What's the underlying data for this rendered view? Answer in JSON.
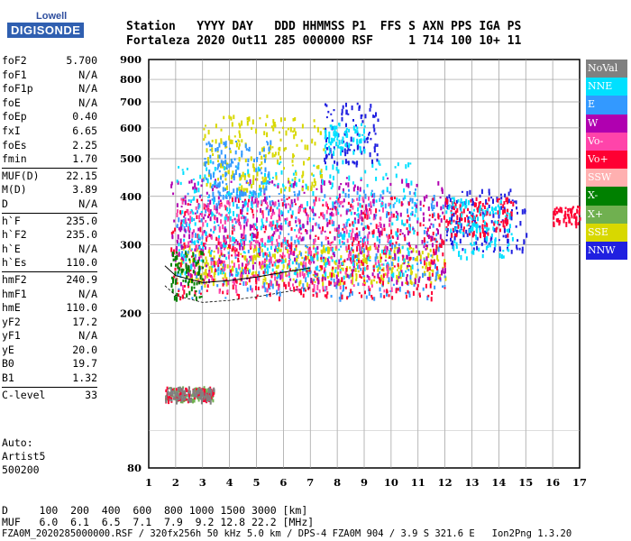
{
  "logo": {
    "top": "Lowell",
    "main": "DIGISONDE"
  },
  "header": {
    "line1": "Station   YYYY DAY   DDD HHMMSS P1  FFS S AXN PPS IGA PS",
    "line2": "Fortaleza 2020 Out11 285 000000 RSF     1 714 100 10+ 11"
  },
  "params": [
    {
      "k": "foF2",
      "v": "5.700"
    },
    {
      "k": "foF1",
      "v": "N/A"
    },
    {
      "k": "foF1p",
      "v": "N/A"
    },
    {
      "k": "foE",
      "v": "N/A"
    },
    {
      "k": "foEp",
      "v": "0.40"
    },
    {
      "k": "fxI",
      "v": "6.65"
    },
    {
      "k": "foEs",
      "v": "2.25"
    },
    {
      "k": "fmin",
      "v": "1.70"
    },
    {
      "k": "MUF(D)",
      "v": "22.15",
      "sep": true
    },
    {
      "k": "M(D)",
      "v": "3.89"
    },
    {
      "k": "D",
      "v": "N/A"
    },
    {
      "k": "h`F",
      "v": "235.0",
      "sep": true
    },
    {
      "k": "h`F2",
      "v": "235.0"
    },
    {
      "k": "h`E",
      "v": "N/A"
    },
    {
      "k": "h`Es",
      "v": "110.0"
    },
    {
      "k": "hmF2",
      "v": "240.9",
      "sep": true
    },
    {
      "k": "hmF1",
      "v": "N/A"
    },
    {
      "k": "hmE",
      "v": "110.0"
    },
    {
      "k": "yF2",
      "v": "17.2"
    },
    {
      "k": "yF1",
      "v": "N/A"
    },
    {
      "k": "yE",
      "v": "20.0"
    },
    {
      "k": "B0",
      "v": "19.7"
    },
    {
      "k": "B1",
      "v": "1.32"
    },
    {
      "k": "C-level",
      "v": "33",
      "sep": true
    }
  ],
  "auto": {
    "label": "Auto:",
    "artist": "Artist5",
    "version": "500200"
  },
  "footer": {
    "d_line": "D     100  200  400  600  800 1000 1500 3000 [km]",
    "muf_line": "MUF   6.0  6.1  6.5  7.1  7.9  9.2 12.8 22.2 [MHz]",
    "file_line": "FZA0M_2020285000000.RSF / 320fx256h 50 kHz 5.0 km / DPS-4 FZA0M 904 / 3.9 S 321.6 E   Ion2Png 1.3.20"
  },
  "legend": [
    {
      "label": "NoVal",
      "color": "#808080"
    },
    {
      "label": "NNE",
      "color": "#00e0ff"
    },
    {
      "label": "E",
      "color": "#3399ff"
    },
    {
      "label": "W",
      "color": "#b000b0"
    },
    {
      "label": "Vo-",
      "color": "#ff44aa"
    },
    {
      "label": "Vo+",
      "color": "#ff0033"
    },
    {
      "label": "SSW",
      "color": "#ffb0b0"
    },
    {
      "label": "X-",
      "color": "#008000"
    },
    {
      "label": "X+",
      "color": "#70b050"
    },
    {
      "label": "SSE",
      "color": "#d8d800"
    },
    {
      "label": "NNW",
      "color": "#2020e0"
    }
  ],
  "chart_data": {
    "type": "scatter",
    "title": "",
    "xlabel": "",
    "ylabel": "",
    "xlim": [
      1,
      17
    ],
    "ylim": [
      80,
      900
    ],
    "x_ticks": [
      1,
      2,
      3,
      4,
      5,
      6,
      7,
      8,
      9,
      10,
      11,
      12,
      13,
      14,
      15,
      16,
      17
    ],
    "y_ticks": [
      80,
      200,
      300,
      400,
      500,
      600,
      700,
      800,
      900
    ],
    "y_scale": "log",
    "grid": true,
    "legend_position": "right",
    "clusters": [
      {
        "series": "X+",
        "x": [
          1.6,
          3.4
        ],
        "y": [
          120,
          130
        ]
      },
      {
        "series": "Vo+",
        "x": [
          1.6,
          3.4
        ],
        "y": [
          120,
          130
        ]
      },
      {
        "series": "NoVal",
        "x": [
          1.6,
          3.4
        ],
        "y": [
          120,
          130
        ]
      },
      {
        "series": "SSE",
        "x": [
          2.0,
          12.0
        ],
        "y": [
          240,
          300
        ]
      },
      {
        "series": "E",
        "x": [
          2.0,
          12.0
        ],
        "y": [
          220,
          420
        ]
      },
      {
        "series": "Vo+",
        "x": [
          1.8,
          12.0
        ],
        "y": [
          220,
          400
        ]
      },
      {
        "series": "W",
        "x": [
          1.8,
          12.0
        ],
        "y": [
          240,
          450
        ]
      },
      {
        "series": "NNE",
        "x": [
          2.0,
          11.0
        ],
        "y": [
          250,
          500
        ]
      },
      {
        "series": "Vo-",
        "x": [
          2.0,
          10.0
        ],
        "y": [
          230,
          400
        ]
      },
      {
        "series": "X-",
        "x": [
          1.8,
          3.0
        ],
        "y": [
          220,
          290
        ]
      },
      {
        "series": "NNW",
        "x": [
          7.5,
          9.5
        ],
        "y": [
          490,
          700
        ]
      },
      {
        "series": "NNE",
        "x": [
          7.5,
          9.0
        ],
        "y": [
          520,
          620
        ]
      },
      {
        "series": "NNW",
        "x": [
          12.0,
          15.0
        ],
        "y": [
          290,
          420
        ]
      },
      {
        "series": "Vo+",
        "x": [
          12.0,
          14.5
        ],
        "y": [
          320,
          400
        ]
      },
      {
        "series": "NNE",
        "x": [
          12.0,
          14.5
        ],
        "y": [
          280,
          400
        ]
      },
      {
        "series": "SSE",
        "x": [
          3.0,
          7.5
        ],
        "y": [
          420,
          650
        ]
      },
      {
        "series": "E",
        "x": [
          3.0,
          5.5
        ],
        "y": [
          400,
          560
        ]
      },
      {
        "series": "Vo+",
        "x": [
          16.0,
          17.0
        ],
        "y": [
          340,
          380
        ]
      }
    ],
    "trace": [
      [
        1.6,
        265
      ],
      [
        2.0,
        250
      ],
      [
        2.5,
        245
      ],
      [
        3.0,
        240
      ],
      [
        4.0,
        243
      ],
      [
        5.0,
        248
      ],
      [
        6.0,
        255
      ],
      [
        7.0,
        262
      ]
    ]
  }
}
